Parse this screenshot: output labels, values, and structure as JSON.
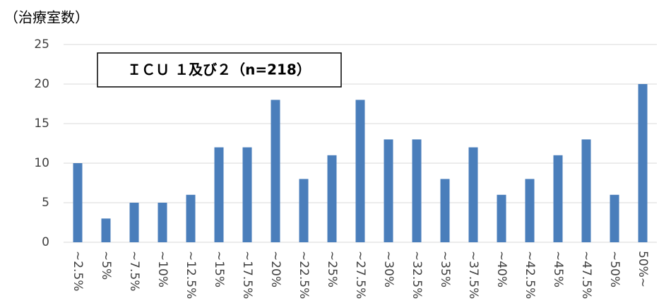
{
  "chart_data": {
    "type": "bar",
    "y_axis_label": "（治療室数）",
    "annotation": "ＩＣＵ １及び２（n=218）",
    "categories": [
      "~2.5%",
      "~5%",
      "~7.5%",
      "~10%",
      "~12.5%",
      "~15%",
      "~17.5%",
      "~20%",
      "~22.5%",
      "~25%",
      "~27.5%",
      "~30%",
      "~32.5%",
      "~35%",
      "~37.5%",
      "~40%",
      "~42.5%",
      "~45%",
      "~47.5%",
      "~50%",
      "50%~"
    ],
    "values": [
      10,
      3,
      5,
      5,
      6,
      12,
      12,
      18,
      8,
      11,
      18,
      13,
      13,
      8,
      12,
      6,
      8,
      11,
      13,
      6,
      20
    ],
    "color": "#4a7ebb",
    "ylim": [
      0,
      25
    ],
    "yticks": [
      0,
      5,
      10,
      15,
      20,
      25
    ],
    "grid": true
  }
}
